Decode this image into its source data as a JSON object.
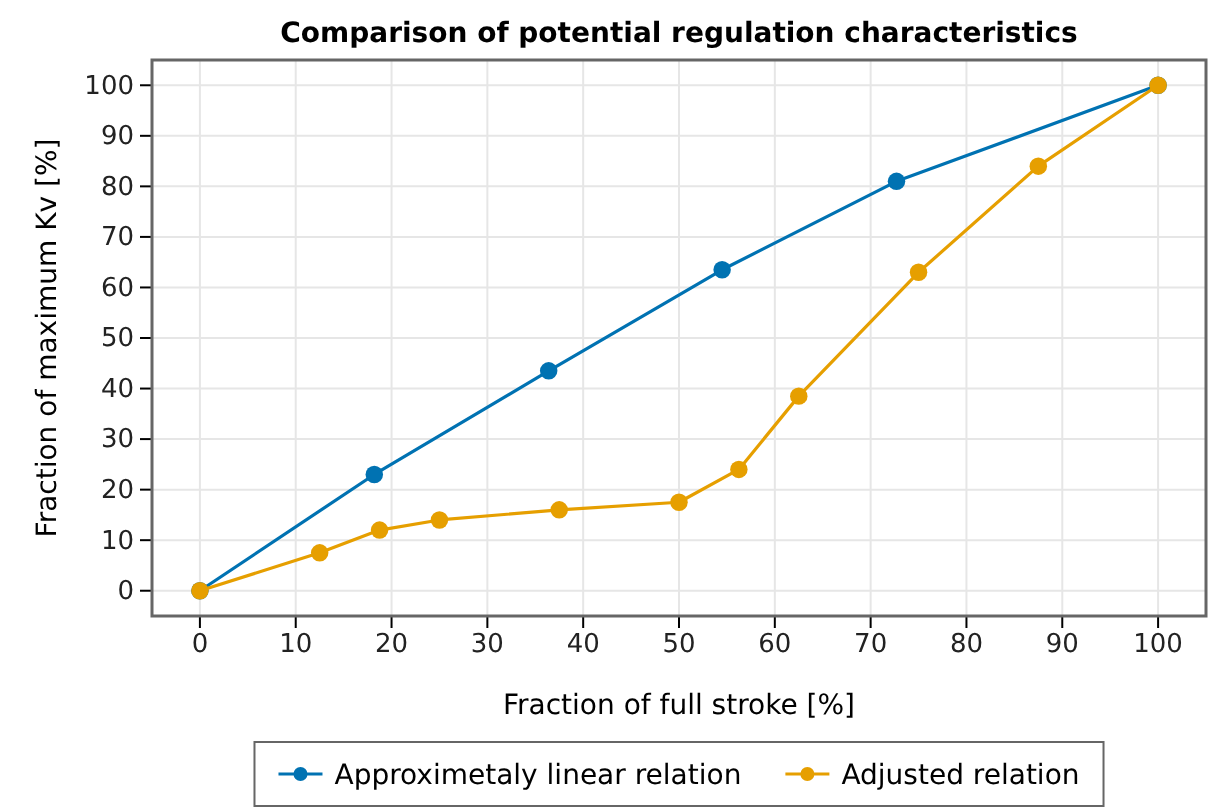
{
  "chart_data": {
    "type": "line",
    "title": "Comparison of potential regulation characteristics",
    "xlabel": "Fraction of full stroke [%]",
    "ylabel": "Fraction of maximum Kv [%]",
    "series": [
      {
        "name": "Approximetaly linear relation",
        "color": "#0072b2",
        "x": [
          0,
          18.2,
          36.4,
          54.5,
          72.7,
          100
        ],
        "values": [
          0,
          23,
          43.5,
          63.5,
          81,
          100
        ]
      },
      {
        "name": "Adjusted relation",
        "color": "#e69f00",
        "x": [
          0,
          12.5,
          18.75,
          25,
          37.5,
          50,
          56.25,
          62.5,
          75,
          87.5,
          100
        ],
        "values": [
          0,
          7.5,
          12,
          14,
          16,
          17.5,
          24,
          38.5,
          63,
          84,
          100
        ]
      }
    ],
    "xlim": [
      -5,
      105
    ],
    "xticks": [
      0,
      10,
      20,
      30,
      40,
      50,
      60,
      70,
      80,
      90,
      100
    ],
    "ylim": [
      -5,
      105
    ],
    "yticks": [
      0,
      10,
      20,
      30,
      40,
      50,
      60,
      70,
      80,
      90,
      100
    ],
    "grid": true,
    "legend": "bottom",
    "marker": "circle",
    "line_style": "solid"
  }
}
